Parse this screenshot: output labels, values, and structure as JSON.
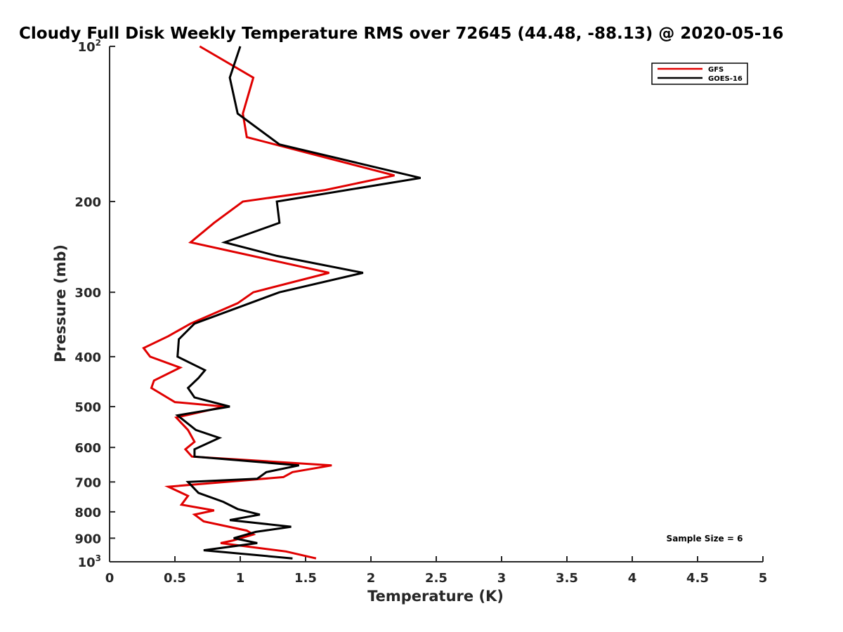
{
  "chart_data": {
    "type": "line",
    "title": "Cloudy Full Disk Weekly Temperature RMS over 72645 (44.48, -88.13) @ 2020-05-16",
    "xlabel": "Temperature (K)",
    "ylabel": "Pressure (mb)",
    "xlim": [
      0,
      5
    ],
    "ylim": [
      100,
      1000
    ],
    "yscale": "log",
    "y_reversed": true,
    "grid": false,
    "legend_position": "top-right",
    "x_ticks": [
      "0",
      "0.5",
      "1",
      "1.5",
      "2",
      "2.5",
      "3",
      "3.5",
      "4",
      "4.5",
      "5"
    ],
    "y_ticks": [
      {
        "value": 100,
        "base": "10",
        "exp": "2"
      },
      {
        "value": 200,
        "label": "200"
      },
      {
        "value": 300,
        "label": "300"
      },
      {
        "value": 400,
        "label": "400"
      },
      {
        "value": 500,
        "label": "500"
      },
      {
        "value": 600,
        "label": "600"
      },
      {
        "value": 700,
        "label": "700"
      },
      {
        "value": 800,
        "label": "800"
      },
      {
        "value": 900,
        "label": "900"
      },
      {
        "value": 1000,
        "base": "10",
        "exp": "3"
      }
    ],
    "annotation": "Sample Size = 6",
    "series": [
      {
        "name": "GFS",
        "color": "#e00000",
        "points": [
          [
            0.69,
            100
          ],
          [
            1.1,
            115
          ],
          [
            1.02,
            135
          ],
          [
            1.05,
            150
          ],
          [
            2.18,
            178
          ],
          [
            1.65,
            190
          ],
          [
            1.02,
            200
          ],
          [
            0.8,
            220
          ],
          [
            0.62,
            240
          ],
          [
            1.68,
            275
          ],
          [
            1.1,
            300
          ],
          [
            0.98,
            315
          ],
          [
            0.62,
            345
          ],
          [
            0.45,
            365
          ],
          [
            0.26,
            385
          ],
          [
            0.31,
            400
          ],
          [
            0.54,
            420
          ],
          [
            0.34,
            445
          ],
          [
            0.32,
            460
          ],
          [
            0.5,
            490
          ],
          [
            0.88,
            500
          ],
          [
            0.51,
            525
          ],
          [
            0.6,
            555
          ],
          [
            0.65,
            585
          ],
          [
            0.58,
            605
          ],
          [
            0.63,
            625
          ],
          [
            1.7,
            650
          ],
          [
            1.4,
            670
          ],
          [
            1.33,
            685
          ],
          [
            0.45,
            715
          ],
          [
            0.6,
            745
          ],
          [
            0.55,
            775
          ],
          [
            0.8,
            795
          ],
          [
            0.65,
            810
          ],
          [
            0.72,
            835
          ],
          [
            1.05,
            870
          ],
          [
            1.1,
            885
          ],
          [
            0.94,
            910
          ],
          [
            0.85,
            920
          ],
          [
            1.35,
            955
          ],
          [
            1.58,
            985
          ]
        ]
      },
      {
        "name": "GOES-16",
        "color": "#000000",
        "points": [
          [
            1.0,
            100
          ],
          [
            0.92,
            115
          ],
          [
            0.98,
            135
          ],
          [
            1.3,
            155
          ],
          [
            2.38,
            180
          ],
          [
            1.28,
            200
          ],
          [
            1.3,
            220
          ],
          [
            0.88,
            240
          ],
          [
            1.28,
            255
          ],
          [
            1.94,
            275
          ],
          [
            1.3,
            300
          ],
          [
            1.0,
            320
          ],
          [
            0.65,
            345
          ],
          [
            0.53,
            370
          ],
          [
            0.52,
            400
          ],
          [
            0.73,
            425
          ],
          [
            0.68,
            440
          ],
          [
            0.6,
            460
          ],
          [
            0.65,
            480
          ],
          [
            0.92,
            500
          ],
          [
            0.52,
            520
          ],
          [
            0.66,
            555
          ],
          [
            0.84,
            575
          ],
          [
            0.65,
            605
          ],
          [
            0.65,
            625
          ],
          [
            1.45,
            650
          ],
          [
            1.2,
            670
          ],
          [
            1.13,
            690
          ],
          [
            0.6,
            700
          ],
          [
            0.68,
            735
          ],
          [
            0.87,
            765
          ],
          [
            0.98,
            790
          ],
          [
            1.15,
            810
          ],
          [
            0.92,
            830
          ],
          [
            1.39,
            855
          ],
          [
            1.12,
            875
          ],
          [
            0.95,
            900
          ],
          [
            1.13,
            920
          ],
          [
            0.72,
            950
          ],
          [
            1.4,
            985
          ]
        ]
      }
    ]
  }
}
